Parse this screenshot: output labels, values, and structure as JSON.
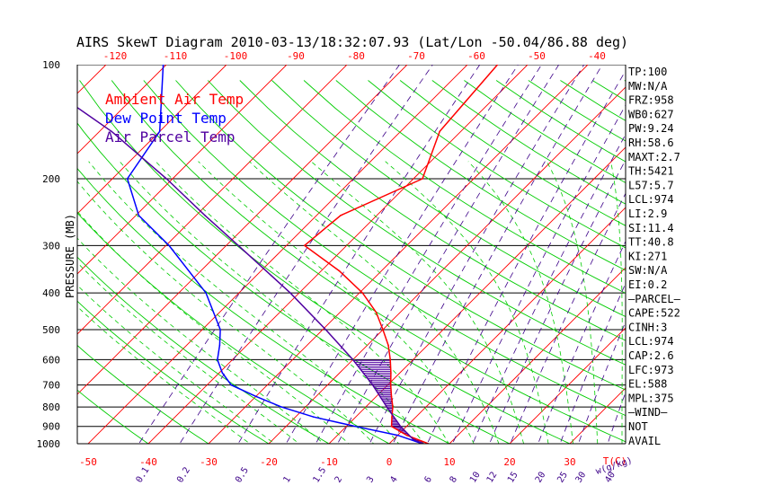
{
  "chart_data": {
    "type": "line",
    "title": "AIRS SkewT Diagram 2010-03-13/18:32:07.93 (Lat/Lon -50.04/86.88 deg)",
    "ylabel": "PRESSURE (MB)",
    "x_unit_label": "T(C)",
    "mixing_unit_label": "w(g/kg)",
    "pressure_ticks": [
      100,
      200,
      300,
      400,
      500,
      600,
      700,
      800,
      900,
      1000
    ],
    "bottom_temp_ticks": [
      -50,
      -40,
      -30,
      -20,
      -10,
      0,
      10,
      20,
      30
    ],
    "top_temp_ticks": [
      -120,
      -110,
      -100,
      -90,
      -80,
      -70,
      -60,
      -50,
      -40
    ],
    "mixing_ratio_ticks": [
      "0.1",
      "0.2",
      "0.5",
      "1",
      "1.5",
      "2",
      "3",
      "4",
      "6",
      "8",
      "10",
      "12",
      "15",
      "20",
      "25",
      "30",
      "40"
    ],
    "legend": [
      {
        "name": "Ambient Air Temp",
        "color": "#ff0000"
      },
      {
        "name": "Dew Point Temp",
        "color": "#0000ff"
      },
      {
        "name": "Air Parcel Temp",
        "color": "#5000a0"
      }
    ],
    "colors": {
      "isotherm": "#ff0000",
      "dry_adiabat": "#00cc00",
      "moist_adiabat": "#00cc00",
      "mixing_ratio": "#3c0088",
      "pressure_line": "#000000",
      "cape_hatch": "#5000a0"
    },
    "series": [
      {
        "name": "Ambient Air Temp",
        "points": [
          {
            "p": 1000,
            "t": 6.5
          },
          {
            "p": 950,
            "t": 1.5
          },
          {
            "p": 900,
            "t": -2.5
          },
          {
            "p": 850,
            "t": -4.0
          },
          {
            "p": 800,
            "t": -5.5
          },
          {
            "p": 750,
            "t": -7.5
          },
          {
            "p": 700,
            "t": -9.5
          },
          {
            "p": 650,
            "t": -11.5
          },
          {
            "p": 600,
            "t": -13.8
          },
          {
            "p": 550,
            "t": -16.5
          },
          {
            "p": 500,
            "t": -20.0
          },
          {
            "p": 450,
            "t": -24.0
          },
          {
            "p": 400,
            "t": -29.5
          },
          {
            "p": 350,
            "t": -37.0
          },
          {
            "p": 300,
            "t": -47.0
          },
          {
            "p": 250,
            "t": -46.0
          },
          {
            "p": 200,
            "t": -38.5
          },
          {
            "p": 150,
            "t": -43.5
          },
          {
            "p": 100,
            "t": -45.0
          }
        ]
      },
      {
        "name": "Dew Point Temp",
        "points": [
          {
            "p": 1000,
            "t": 5.5
          },
          {
            "p": 950,
            "t": 0.0
          },
          {
            "p": 900,
            "t": -8.5
          },
          {
            "p": 850,
            "t": -17.0
          },
          {
            "p": 800,
            "t": -24.0
          },
          {
            "p": 750,
            "t": -30.0
          },
          {
            "p": 700,
            "t": -36.0
          },
          {
            "p": 650,
            "t": -39.5
          },
          {
            "p": 600,
            "t": -42.5
          },
          {
            "p": 550,
            "t": -44.5
          },
          {
            "p": 500,
            "t": -47.0
          },
          {
            "p": 400,
            "t": -55.5
          },
          {
            "p": 300,
            "t": -69.5
          },
          {
            "p": 250,
            "t": -79.5
          },
          {
            "p": 200,
            "t": -87.5
          },
          {
            "p": 150,
            "t": -90.0
          },
          {
            "p": 100,
            "t": -100.5
          }
        ]
      },
      {
        "name": "Air Parcel Temp",
        "points": [
          {
            "p": 1000,
            "t": 5.7
          },
          {
            "p": 973,
            "t": 3.2
          },
          {
            "p": 900,
            "t": -1.0
          },
          {
            "p": 800,
            "t": -6.5
          },
          {
            "p": 700,
            "t": -12.5
          },
          {
            "p": 600,
            "t": -20.0
          },
          {
            "p": 500,
            "t": -29.5
          },
          {
            "p": 400,
            "t": -41.5
          },
          {
            "p": 300,
            "t": -58.0
          },
          {
            "p": 250,
            "t": -68.5
          },
          {
            "p": 200,
            "t": -81.0
          },
          {
            "p": 150,
            "t": -98.0
          },
          {
            "p": 100,
            "t": -125.0
          }
        ]
      }
    ],
    "stats": [
      "TP:100",
      "MW:N/A",
      "FRZ:958",
      "WB0:627",
      "PW:9.24",
      "RH:58.6",
      "MAXT:2.7",
      "TH:5421",
      "L57:5.7",
      "LCL:974",
      "LI:2.9",
      "SI:11.4",
      "TT:40.8",
      "KI:271",
      "SW:N/A",
      "EI:0.2",
      "—PARCEL—",
      "CAPE:522",
      "CINH:3",
      "LCL:974",
      "CAP:2.6",
      "LFC:973",
      "EL:588",
      "MPL:375",
      "—WIND—",
      "NOT",
      "AVAIL"
    ]
  }
}
